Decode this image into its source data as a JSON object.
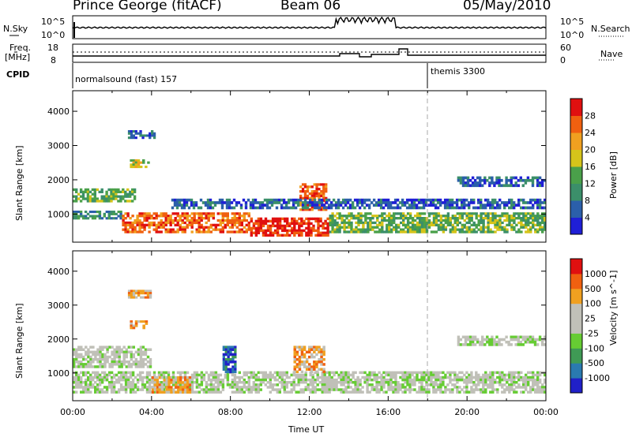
{
  "header": {
    "radar": "Prince George (fitACF)",
    "beam": "Beam 06",
    "date": "05/May/2010"
  },
  "top_panels": {
    "nsky_label": "N.Sky",
    "nsky_ticks": [
      "10^5",
      "10^0"
    ],
    "nsearch_label": "N.Search",
    "nsearch_ticks": [
      "10^5",
      "10^0"
    ],
    "freq_label_1": "Freq.",
    "freq_label_2": "[MHz]",
    "freq_ticks": [
      "18",
      "8"
    ],
    "nave_label": "Nave",
    "nave_ticks": [
      "60",
      "0"
    ],
    "cpid_label": "CPID",
    "cpid_1": "normalsound (fast) 157",
    "cpid_2": "themis 3300"
  },
  "chart_data": [
    {
      "type": "heatmap",
      "name": "power",
      "ylabel": "Slant Range [km]",
      "ylim": [
        180,
        4600
      ],
      "yticks": [
        "4000",
        "3000",
        "2000",
        "1000"
      ],
      "colorbar_label": "Power [dB]",
      "colorbar_ticks": [
        "28",
        "24",
        "20",
        "16",
        "12",
        "8",
        "4"
      ],
      "colors": [
        "#1f1fd6",
        "#2b5faa",
        "#3b8f6a",
        "#4aa04a",
        "#d6c41a",
        "#f0a020",
        "#f06010",
        "#e01010"
      ],
      "regions": [
        {
          "t0": 0.0,
          "t1": 3.2,
          "r0": 1350,
          "r1": 1750,
          "level": 3
        },
        {
          "t0": 0.0,
          "t1": 2.5,
          "r0": 850,
          "r1": 1100,
          "level": 2
        },
        {
          "t0": 2.8,
          "t1": 4.2,
          "r0": 3200,
          "r1": 3450,
          "level": 1
        },
        {
          "t0": 2.9,
          "t1": 3.9,
          "r0": 2350,
          "r1": 2600,
          "level": 4
        },
        {
          "t0": 2.5,
          "t1": 9.0,
          "r0": 450,
          "r1": 1050,
          "level": 6
        },
        {
          "t0": 9.0,
          "t1": 13.0,
          "r0": 350,
          "r1": 900,
          "level": 7
        },
        {
          "t0": 11.5,
          "t1": 12.9,
          "r0": 1100,
          "r1": 1900,
          "level": 6
        },
        {
          "t0": 13.0,
          "t1": 24.0,
          "r0": 450,
          "r1": 1050,
          "level": 3
        },
        {
          "t0": 5.0,
          "t1": 24.0,
          "r0": 1150,
          "r1": 1450,
          "level": 1
        },
        {
          "t0": 19.5,
          "t1": 24.0,
          "r0": 1800,
          "r1": 2100,
          "level": 1
        }
      ]
    },
    {
      "type": "heatmap",
      "name": "velocity",
      "xlabel": "Time UT",
      "ylabel": "Slant Range [km]",
      "ylim": [
        180,
        4600
      ],
      "xlim": [
        0,
        24
      ],
      "xticks": [
        "00:00",
        "04:00",
        "08:00",
        "12:00",
        "16:00",
        "20:00",
        "00:00"
      ],
      "yticks": [
        "4000",
        "3000",
        "2000",
        "1000"
      ],
      "colorbar_label": "Velocity [m s^-1]",
      "colorbar_ticks": [
        "1000",
        "500",
        "100",
        "25",
        "-25",
        "-100",
        "-500",
        "-1000"
      ],
      "colors": [
        "#2020c8",
        "#2a7ab0",
        "#3f9a55",
        "#66cc33",
        "#c0c0b8",
        "#c0c0b8",
        "#f0a020",
        "#f06010",
        "#e01010"
      ],
      "regions": [
        {
          "t0": 0.0,
          "t1": 24.0,
          "r0": 400,
          "r1": 1050,
          "level": 4
        },
        {
          "t0": 0.0,
          "t1": 4.0,
          "r0": 1150,
          "r1": 1800,
          "level": 4
        },
        {
          "t0": 2.8,
          "t1": 4.0,
          "r0": 3200,
          "r1": 3450,
          "level": 6
        },
        {
          "t0": 2.9,
          "t1": 3.8,
          "r0": 2300,
          "r1": 2550,
          "level": 6
        },
        {
          "t0": 11.2,
          "t1": 12.8,
          "r0": 1000,
          "r1": 1800,
          "level": 6
        },
        {
          "t0": 7.6,
          "t1": 8.3,
          "r0": 1000,
          "r1": 1800,
          "level": 1
        },
        {
          "t0": 4.0,
          "t1": 6.0,
          "r0": 400,
          "r1": 900,
          "level": 6
        },
        {
          "t0": 19.5,
          "t1": 24.0,
          "r0": 1800,
          "r1": 2100,
          "level": 4
        }
      ]
    }
  ]
}
